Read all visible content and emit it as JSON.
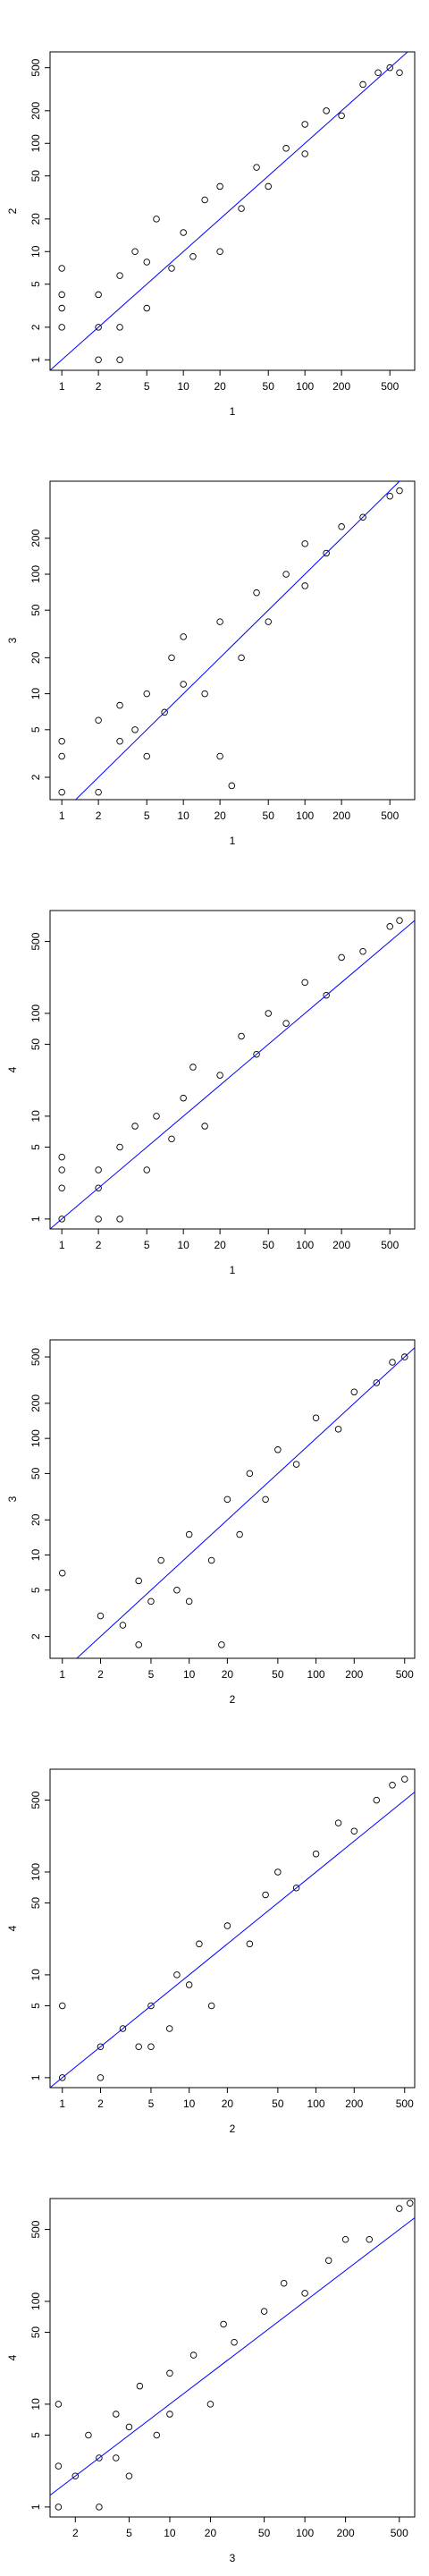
{
  "chart_data": [
    {
      "type": "scatter",
      "xlabel": "1",
      "ylabel": "2",
      "log_x": true,
      "log_y": true,
      "color": "#000000",
      "abline": {
        "intercept": 0,
        "slope": 1,
        "color": "#0000ff"
      },
      "xlim": [
        0.8,
        800
      ],
      "ylim": [
        0.8,
        700
      ],
      "xticks": [
        1,
        2,
        5,
        10,
        20,
        50,
        100,
        200,
        500
      ],
      "yticks": [
        1,
        2,
        5,
        10,
        20,
        50,
        100,
        200,
        500
      ],
      "x": [
        1,
        1,
        1,
        1,
        2,
        2,
        2,
        3,
        3,
        3,
        4,
        5,
        5,
        6,
        8,
        10,
        12,
        15,
        20,
        20,
        30,
        40,
        50,
        70,
        100,
        100,
        150,
        200,
        300,
        400,
        500,
        600
      ],
      "values": [
        2,
        3,
        4,
        7,
        1,
        2,
        4,
        1,
        2,
        6,
        10,
        3,
        8,
        20,
        7,
        15,
        9,
        30,
        10,
        40,
        25,
        60,
        40,
        90,
        80,
        150,
        200,
        180,
        350,
        450,
        500,
        450
      ]
    },
    {
      "type": "scatter",
      "xlabel": "1",
      "ylabel": "3",
      "log_x": true,
      "log_y": true,
      "color": "#000000",
      "abline": {
        "intercept": 0,
        "slope": 1,
        "color": "#0000ff"
      },
      "xlim": [
        0.8,
        800
      ],
      "ylim": [
        1.3,
        600
      ],
      "xticks": [
        1,
        2,
        5,
        10,
        20,
        50,
        100,
        200,
        500
      ],
      "yticks": [
        2,
        5,
        10,
        20,
        50,
        100,
        200
      ],
      "x": [
        1,
        1,
        1,
        2,
        2,
        3,
        3,
        4,
        5,
        5,
        7,
        8,
        10,
        10,
        15,
        20,
        20,
        25,
        30,
        40,
        50,
        70,
        100,
        100,
        150,
        200,
        300,
        500,
        600
      ],
      "values": [
        1.5,
        3,
        4,
        1.5,
        6,
        4,
        8,
        5,
        10,
        3,
        7,
        20,
        12,
        30,
        10,
        3,
        40,
        1.7,
        20,
        70,
        40,
        100,
        80,
        180,
        150,
        250,
        300,
        450,
        500
      ]
    },
    {
      "type": "scatter",
      "xlabel": "1",
      "ylabel": "4",
      "log_x": true,
      "log_y": true,
      "color": "#000000",
      "abline": {
        "intercept": 0,
        "slope": 1,
        "color": "#0000ff"
      },
      "xlim": [
        0.8,
        800
      ],
      "ylim": [
        0.8,
        1000
      ],
      "xticks": [
        1,
        2,
        5,
        10,
        20,
        50,
        100,
        200,
        500
      ],
      "yticks": [
        1,
        5,
        10,
        50,
        100,
        500
      ],
      "x": [
        1,
        1,
        1,
        1,
        2,
        2,
        2,
        3,
        3,
        4,
        5,
        6,
        8,
        10,
        12,
        15,
        20,
        30,
        40,
        50,
        70,
        100,
        150,
        200,
        300,
        500,
        600
      ],
      "values": [
        1,
        2,
        3,
        4,
        1,
        2,
        3,
        1,
        5,
        8,
        3,
        10,
        6,
        15,
        30,
        8,
        25,
        60,
        40,
        100,
        80,
        200,
        150,
        350,
        400,
        700,
        800
      ]
    },
    {
      "type": "scatter",
      "xlabel": "2",
      "ylabel": "3",
      "log_x": true,
      "log_y": true,
      "color": "#000000",
      "abline": {
        "intercept": 0,
        "slope": 1,
        "color": "#0000ff"
      },
      "xlim": [
        0.8,
        600
      ],
      "ylim": [
        1.3,
        700
      ],
      "xticks": [
        1,
        2,
        5,
        10,
        20,
        50,
        100,
        200,
        500
      ],
      "yticks": [
        2,
        5,
        10,
        20,
        50,
        100,
        200,
        500
      ],
      "x": [
        1,
        2,
        3,
        4,
        4,
        5,
        6,
        8,
        10,
        10,
        15,
        18,
        20,
        25,
        30,
        40,
        50,
        70,
        100,
        150,
        200,
        300,
        400,
        500
      ],
      "values": [
        7,
        3,
        2.5,
        1.7,
        6,
        4,
        9,
        5,
        15,
        4,
        9,
        1.7,
        30,
        15,
        50,
        30,
        80,
        60,
        150,
        120,
        250,
        300,
        450,
        500
      ]
    },
    {
      "type": "scatter",
      "xlabel": "2",
      "ylabel": "4",
      "log_x": true,
      "log_y": true,
      "color": "#000000",
      "abline": {
        "intercept": 0,
        "slope": 1,
        "color": "#0000ff"
      },
      "xlim": [
        0.8,
        600
      ],
      "ylim": [
        0.8,
        1000
      ],
      "xticks": [
        1,
        2,
        5,
        10,
        20,
        50,
        100,
        200,
        500
      ],
      "yticks": [
        1,
        5,
        10,
        50,
        100,
        500
      ],
      "x": [
        1,
        1,
        2,
        2,
        3,
        4,
        5,
        5,
        7,
        8,
        10,
        12,
        15,
        20,
        30,
        40,
        50,
        70,
        100,
        150,
        200,
        300,
        400,
        500
      ],
      "values": [
        1,
        5,
        2,
        1,
        3,
        2,
        5,
        2,
        3,
        10,
        8,
        20,
        5,
        30,
        20,
        60,
        100,
        70,
        150,
        300,
        250,
        500,
        700,
        800
      ]
    },
    {
      "type": "scatter",
      "xlabel": "3",
      "ylabel": "4",
      "log_x": true,
      "log_y": true,
      "color": "#000000",
      "abline": {
        "intercept": 0,
        "slope": 1,
        "color": "#0000ff"
      },
      "xlim": [
        1.3,
        650
      ],
      "ylim": [
        0.8,
        1000
      ],
      "xticks": [
        2,
        5,
        10,
        20,
        50,
        100,
        200,
        500
      ],
      "yticks": [
        1,
        5,
        10,
        50,
        100,
        500
      ],
      "x": [
        1.5,
        1.5,
        1.5,
        2,
        2.5,
        3,
        3,
        4,
        4,
        5,
        5,
        6,
        8,
        10,
        10,
        15,
        20,
        25,
        30,
        50,
        70,
        100,
        150,
        200,
        300,
        500,
        600
      ],
      "values": [
        1,
        2.5,
        10,
        2,
        5,
        1,
        3,
        3,
        8,
        2,
        6,
        15,
        5,
        20,
        8,
        30,
        10,
        60,
        40,
        80,
        150,
        120,
        250,
        400,
        400,
        800,
        900
      ]
    }
  ]
}
